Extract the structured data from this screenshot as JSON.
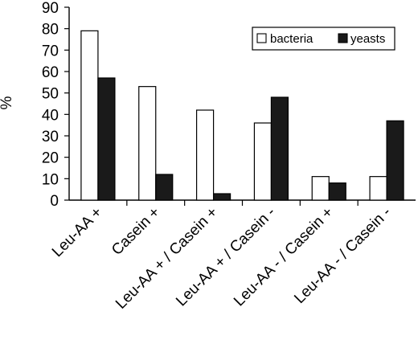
{
  "chart_data": {
    "type": "bar",
    "title": "",
    "xlabel": "",
    "ylabel": "%",
    "ylim": [
      0,
      90
    ],
    "yticks": [
      0,
      10,
      20,
      30,
      40,
      50,
      60,
      70,
      80,
      90
    ],
    "grid": false,
    "legend_position": "top-right",
    "categories": [
      "Leu-AA +",
      "Casein +",
      "Leu-AA + / Casein +",
      "Leu-AA + / Casein -",
      "Leu-AA - / Casein +",
      "Leu-AA - / Casein -"
    ],
    "series": [
      {
        "name": "bacteria",
        "values": [
          79,
          53,
          42,
          36,
          11,
          11
        ],
        "color": "#ffffff"
      },
      {
        "name": "yeasts",
        "values": [
          57,
          12,
          3,
          48,
          8,
          37
        ],
        "color": "#1a1a1a"
      }
    ]
  }
}
